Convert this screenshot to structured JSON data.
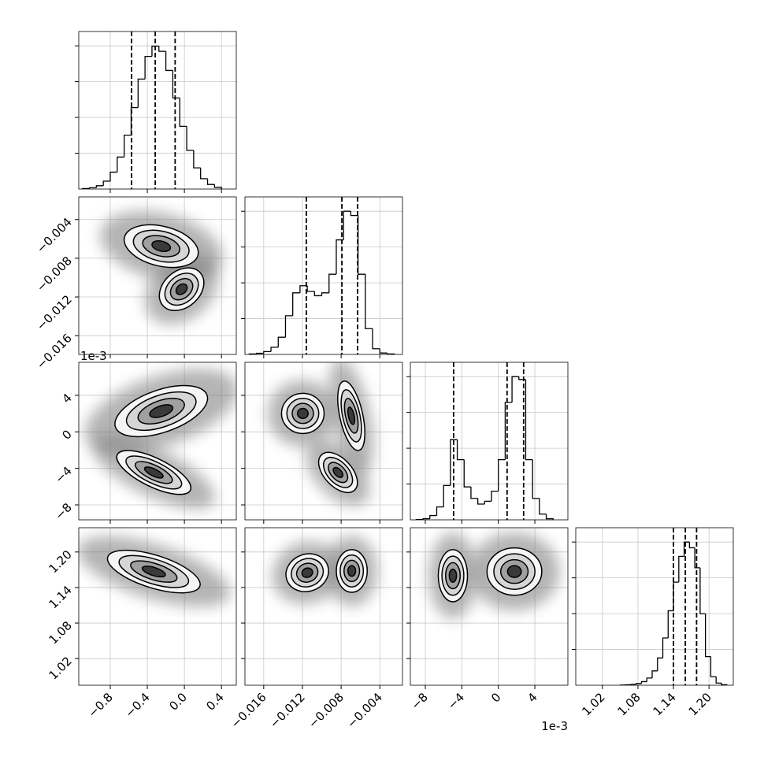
{
  "chart_data": {
    "type": "corner",
    "hist_ylim": [
      0,
      1100
    ],
    "hist_yticks": [
      250,
      500,
      750,
      1000
    ],
    "params": [
      {
        "lim": [
          -1.14,
          0.56
        ],
        "ticks": [
          {
            "value": -0.8,
            "label": "−0.8"
          },
          {
            "value": -0.4,
            "label": "−0.4"
          },
          {
            "value": 0,
            "label": "0.0"
          },
          {
            "value": 0.4,
            "label": "0.4"
          }
        ],
        "bins": [
          -1.1,
          -1.025,
          -0.95,
          -0.875,
          -0.8,
          -0.725,
          -0.65,
          -0.575,
          -0.5,
          -0.425,
          -0.35,
          -0.275,
          -0.2,
          -0.125,
          -0.05,
          0.025,
          0.1,
          0.175,
          0.25,
          0.325,
          0.4
        ],
        "counts": [
          3,
          9,
          23,
          55,
          118,
          223,
          376,
          569,
          768,
          926,
          998,
          962,
          828,
          636,
          438,
          270,
          148,
          72,
          32,
          12
        ],
        "quantiles": [
          -0.57,
          -0.315,
          -0.1
        ]
      },
      {
        "lim": [
          -0.01794,
          -0.00166
        ],
        "ticks": [
          {
            "value": -0.016,
            "label": "−0.016"
          },
          {
            "value": -0.012,
            "label": "−0.012"
          },
          {
            "value": -0.008,
            "label": "−0.008"
          },
          {
            "value": -0.004,
            "label": "−0.004"
          }
        ],
        "bins": [
          -0.0175,
          -0.01675,
          -0.016,
          -0.01525,
          -0.0145,
          -0.01375,
          -0.013,
          -0.01225,
          -0.0115,
          -0.01075,
          -0.01,
          -0.00925,
          -0.0085,
          -0.00775,
          -0.007,
          -0.00625,
          -0.0055,
          -0.00475,
          -0.004,
          -0.00325,
          -0.0025
        ],
        "counts": [
          3,
          8,
          20,
          50,
          120,
          270,
          430,
          480,
          440,
          410,
          430,
          560,
          800,
          1000,
          970,
          560,
          180,
          40,
          10,
          3
        ],
        "quantiles": [
          -0.0116,
          -0.00792,
          -0.0063
        ]
      },
      {
        "lim": [
          -9.64,
          7.62
        ],
        "ticks": [
          {
            "value": -8,
            "label": "−8"
          },
          {
            "value": -4,
            "label": "−4"
          },
          0,
          4
        ],
        "offset_label": "1e-3",
        "bins": [
          -9,
          -8.25,
          -7.5,
          -6.75,
          -6,
          -5.25,
          -4.5,
          -3.75,
          -3,
          -2.25,
          -1.5,
          -0.75,
          0,
          0.75,
          1.5,
          2.25,
          3,
          3.75,
          4.5,
          5.25,
          6
        ],
        "counts": [
          2,
          8,
          30,
          90,
          240,
          560,
          420,
          230,
          150,
          110,
          130,
          200,
          420,
          820,
          1000,
          980,
          420,
          150,
          40,
          8
        ],
        "quantiles": [
          -4.9,
          0.96,
          2.77
        ]
      },
      {
        "lim": [
          0.975,
          1.241
        ],
        "ticks": [
          {
            "value": 1.02,
            "label": "1.02"
          },
          {
            "value": 1.08,
            "label": "1.08"
          },
          {
            "value": 1.14,
            "label": "1.14"
          },
          {
            "value": 1.2,
            "label": "1.20"
          }
        ],
        "bins": [
          1.05,
          1.059,
          1.068,
          1.077,
          1.086,
          1.095,
          1.104,
          1.113,
          1.122,
          1.131,
          1.14,
          1.149,
          1.158,
          1.167,
          1.176,
          1.185,
          1.194,
          1.203,
          1.212,
          1.221,
          1.23
        ],
        "counts": [
          1,
          3,
          6,
          12,
          25,
          50,
          100,
          190,
          330,
          520,
          720,
          900,
          1000,
          960,
          820,
          500,
          200,
          60,
          15,
          4
        ],
        "quantiles": [
          1.14,
          1.16,
          1.179
        ]
      }
    ],
    "panels": [
      {
        "clusters": [
          {
            "x": -0.25,
            "y": -0.00675,
            "sx": 0.2,
            "sy": 0.0011,
            "rho": -0.3
          },
          {
            "x": -0.03,
            "y": -0.0112,
            "sx": 0.12,
            "sy": 0.0011,
            "rho": 0.3
          }
        ]
      },
      {
        "clusters": [
          {
            "x": -0.25,
            "y": 2.27,
            "sx": 0.25,
            "sy": 1.4,
            "rho": 0.5
          },
          {
            "x": -0.33,
            "y": -4.45,
            "sx": 0.2,
            "sy": 1.2,
            "rho": -0.7
          }
        ]
      },
      {
        "clusters": [
          {
            "x": -0.01196,
            "y": 2.02,
            "sx": 0.0011,
            "sy": 1.1,
            "rho": 0
          },
          {
            "x": -0.00695,
            "y": 1.76,
            "sx": 0.0007,
            "sy": 1.9,
            "rho": -0.5
          },
          {
            "x": -0.00832,
            "y": -4.45,
            "sx": 0.001,
            "sy": 1.1,
            "rho": -0.5
          }
        ]
      },
      {
        "clusters": [
          {
            "x": -0.33,
            "y": 1.167,
            "sx": 0.25,
            "sy": 0.018,
            "rho": -0.6
          }
        ]
      },
      {
        "clusters": [
          {
            "x": -0.0115,
            "y": 1.165,
            "sx": 0.0011,
            "sy": 0.016,
            "rho": 0.1
          },
          {
            "x": -0.0069,
            "y": 1.168,
            "sx": 0.0008,
            "sy": 0.018,
            "rho": 0
          }
        ]
      },
      {
        "clusters": [
          {
            "x": -4.98,
            "y": 1.16,
            "sx": 0.8,
            "sy": 0.022,
            "rho": 0
          },
          {
            "x": 1.76,
            "y": 1.167,
            "sx": 1.5,
            "sy": 0.02,
            "rho": 0
          }
        ]
      }
    ]
  }
}
